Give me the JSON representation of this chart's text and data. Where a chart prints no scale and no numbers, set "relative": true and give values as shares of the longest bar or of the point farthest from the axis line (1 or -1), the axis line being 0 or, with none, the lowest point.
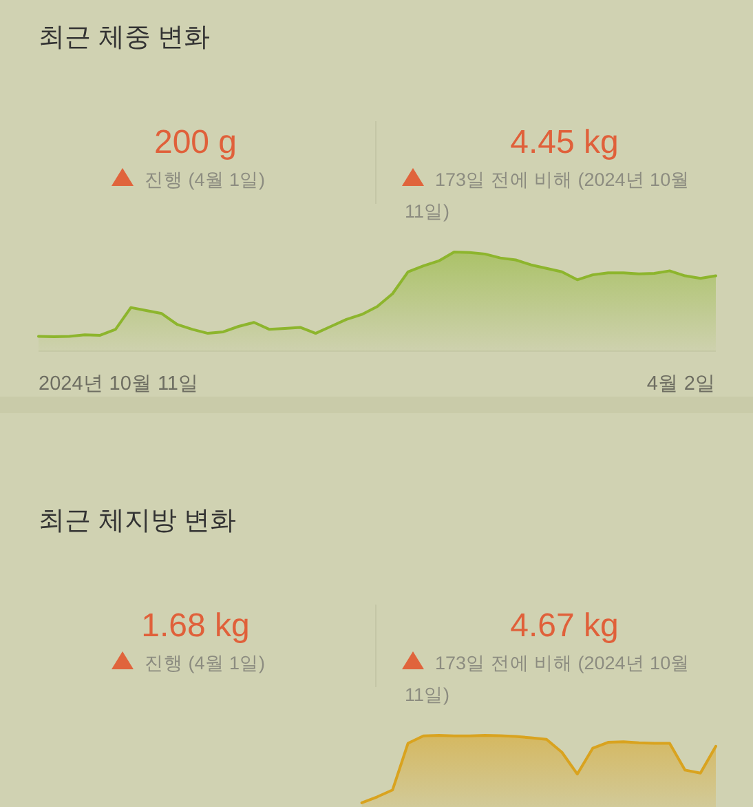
{
  "chart_data": [
    {
      "type": "area",
      "title": "최근 체중 변화",
      "relative": true,
      "annotations": [
        "200 g",
        "진행 (4월 1일)",
        "4.45 kg",
        "173일 전에 비해 (2024년 10월 11일)",
        "2024년 10월 11일",
        "4월 2일"
      ],
      "categories": [
        null,
        null,
        null,
        null,
        null,
        null,
        null,
        null,
        null,
        null,
        null,
        null,
        null,
        null,
        null,
        null,
        null,
        null,
        null,
        null,
        null,
        null,
        null,
        null,
        null,
        null,
        null,
        null,
        null,
        null,
        null,
        null,
        null,
        null,
        null,
        null,
        null,
        null,
        null,
        null,
        null,
        null,
        null,
        null,
        null
      ],
      "series": [
        {
          "color": "#8db52d",
          "values": [
            0.15,
            0.145,
            0.15,
            0.165,
            0.16,
            0.22,
            0.44,
            0.41,
            0.38,
            0.27,
            0.22,
            0.18,
            0.195,
            0.25,
            0.29,
            0.22,
            0.23,
            0.24,
            0.18,
            0.25,
            0.32,
            0.37,
            0.45,
            0.58,
            0.8,
            0.86,
            0.91,
            1.0,
            0.995,
            0.98,
            0.94,
            0.92,
            0.87,
            0.835,
            0.8,
            0.72,
            0.77,
            0.79,
            0.79,
            0.78,
            0.785,
            0.81,
            0.76,
            0.735,
            0.76
          ]
        }
      ]
    },
    {
      "type": "area",
      "title": "최근 체지방 변화",
      "relative": true,
      "annotations": [
        "1.68 kg",
        "진행 (4월 1일)",
        "4.67 kg",
        "173일 전에 비해 (2024년 10월 11일)"
      ],
      "categories": [
        null,
        null,
        null,
        null,
        null,
        null,
        null,
        null,
        null,
        null,
        null,
        null,
        null,
        null,
        null,
        null,
        null,
        null,
        null,
        null,
        null,
        null,
        null,
        null,
        null,
        null,
        null,
        null,
        null,
        null,
        null,
        null,
        null,
        null,
        null,
        null,
        null,
        null,
        null,
        null,
        null,
        null,
        null,
        null,
        null
      ],
      "series": [
        {
          "color": "#d9a31f",
          "values": [
            null,
            null,
            null,
            null,
            null,
            null,
            null,
            null,
            null,
            null,
            null,
            null,
            null,
            null,
            null,
            null,
            null,
            null,
            null,
            null,
            null,
            0.32,
            0.38,
            0.45,
            0.92,
            0.995,
            1.0,
            0.995,
            0.995,
            1.0,
            0.997,
            0.99,
            0.975,
            0.96,
            0.83,
            0.61,
            0.87,
            0.93,
            0.935,
            0.925,
            0.92,
            0.92,
            0.65,
            0.62,
            0.89
          ]
        }
      ]
    }
  ]
}
